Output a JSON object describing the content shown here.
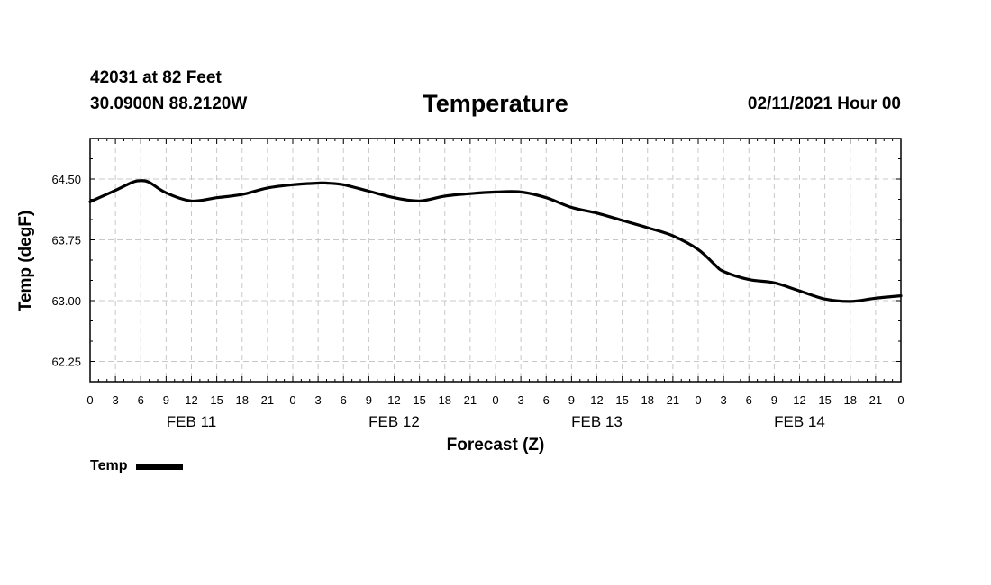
{
  "header": {
    "station": "42031 at 82 Feet",
    "coordinates": "30.0900N 88.2120W",
    "title": "Temperature",
    "run_time": "02/11/2021 Hour 00"
  },
  "legend": {
    "label": "Temp"
  },
  "chart_data": {
    "type": "line",
    "title": "Temperature",
    "xlabel": "Forecast (Z)",
    "ylabel": "Temp (degF)",
    "xlim": [
      0,
      96
    ],
    "ylim": [
      62.0,
      65.0
    ],
    "x_unit": "forecast hour",
    "y_ticks": [
      "64.50",
      "63.75",
      "63.00",
      "62.25"
    ],
    "y_tick_values": [
      64.5,
      63.75,
      63.0,
      62.25
    ],
    "x_tick_labels": [
      "0",
      "3",
      "6",
      "9",
      "12",
      "15",
      "18",
      "21",
      "0",
      "3",
      "6",
      "9",
      "12",
      "15",
      "18",
      "21",
      "0",
      "3",
      "6",
      "9",
      "12",
      "15",
      "18",
      "21",
      "0",
      "3",
      "6",
      "9",
      "12",
      "15",
      "18",
      "21",
      "0"
    ],
    "day_labels": [
      {
        "label": "FEB 11",
        "hour": 12
      },
      {
        "label": "FEB 12",
        "hour": 36
      },
      {
        "label": "FEB 13",
        "hour": 60
      },
      {
        "label": "FEB 14",
        "hour": 84
      }
    ],
    "grid": true,
    "legend_position": "bottom-left",
    "series": [
      {
        "name": "Temp",
        "color": "#000000",
        "x": [
          0,
          3,
          5,
          6,
          7,
          9,
          12,
          15,
          18,
          21,
          24,
          27,
          28,
          30,
          33,
          36,
          39,
          42,
          45,
          48,
          51,
          54,
          57,
          60,
          63,
          66,
          69,
          72,
          74,
          75,
          78,
          81,
          84,
          87,
          90,
          93,
          96
        ],
        "y": [
          64.22,
          64.36,
          64.46,
          64.48,
          64.46,
          64.33,
          64.23,
          64.27,
          64.31,
          64.39,
          64.43,
          64.45,
          64.45,
          64.43,
          64.35,
          64.27,
          64.23,
          64.29,
          64.32,
          64.34,
          64.34,
          64.27,
          64.15,
          64.08,
          63.99,
          63.9,
          63.8,
          63.63,
          63.44,
          63.36,
          63.26,
          63.22,
          63.12,
          63.02,
          62.99,
          63.03,
          63.06
        ]
      }
    ]
  }
}
